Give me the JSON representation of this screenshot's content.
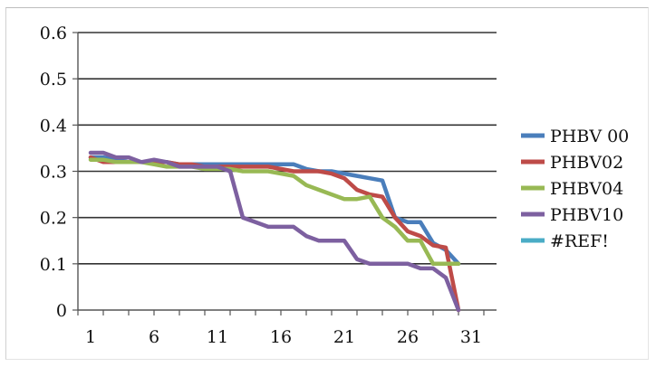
{
  "chart_data": {
    "type": "line",
    "title": "",
    "xlabel": "",
    "ylabel": "",
    "ylim": [
      0,
      0.6
    ],
    "xlim": [
      0,
      33
    ],
    "grid": "horizontal",
    "legend_position": "right",
    "y_ticks": [
      "0",
      "0.1",
      "0.2",
      "0.3",
      "0.4",
      "0.5",
      "0.6"
    ],
    "x_ticks": [
      "1",
      "6",
      "11",
      "16",
      "21",
      "26",
      "31"
    ],
    "x_tick_values": [
      1,
      6,
      11,
      16,
      21,
      26,
      31
    ],
    "series": [
      {
        "name": "PHBV 00",
        "color": "#4a7ebb",
        "x": [
          1,
          2,
          3,
          4,
          5,
          6,
          7,
          8,
          9,
          10,
          11,
          12,
          13,
          14,
          15,
          16,
          17,
          18,
          19,
          20,
          21,
          22,
          23,
          24,
          25,
          26,
          27,
          28,
          29,
          30
        ],
        "y": [
          0.33,
          0.33,
          0.325,
          0.32,
          0.32,
          0.32,
          0.32,
          0.315,
          0.315,
          0.315,
          0.315,
          0.315,
          0.315,
          0.315,
          0.315,
          0.315,
          0.315,
          0.305,
          0.3,
          0.3,
          0.295,
          0.29,
          0.285,
          0.28,
          0.2,
          0.19,
          0.19,
          0.145,
          0.13,
          0.1
        ]
      },
      {
        "name": "PHBV02",
        "color": "#be4b48",
        "x": [
          1,
          2,
          3,
          4,
          5,
          6,
          7,
          8,
          9,
          10,
          11,
          12,
          13,
          14,
          15,
          16,
          17,
          18,
          19,
          20,
          21,
          22,
          23,
          24,
          25,
          26,
          27,
          28,
          29,
          30
        ],
        "y": [
          0.33,
          0.32,
          0.32,
          0.32,
          0.32,
          0.32,
          0.32,
          0.315,
          0.315,
          0.31,
          0.31,
          0.31,
          0.31,
          0.31,
          0.31,
          0.305,
          0.3,
          0.3,
          0.3,
          0.295,
          0.285,
          0.26,
          0.25,
          0.245,
          0.2,
          0.17,
          0.16,
          0.14,
          0.135,
          0.0
        ]
      },
      {
        "name": "PHBV04",
        "color": "#98b954",
        "x": [
          1,
          2,
          3,
          4,
          5,
          6,
          7,
          8,
          9,
          10,
          11,
          12,
          13,
          14,
          15,
          16,
          17,
          18,
          19,
          20,
          21,
          22,
          23,
          24,
          25,
          26,
          27,
          28,
          29,
          30
        ],
        "y": [
          0.325,
          0.325,
          0.32,
          0.32,
          0.32,
          0.315,
          0.31,
          0.31,
          0.31,
          0.305,
          0.305,
          0.305,
          0.3,
          0.3,
          0.3,
          0.295,
          0.29,
          0.27,
          0.26,
          0.25,
          0.24,
          0.24,
          0.245,
          0.2,
          0.18,
          0.15,
          0.15,
          0.1,
          0.1,
          0.1
        ]
      },
      {
        "name": "PHBV10",
        "color": "#7d60a0",
        "x": [
          1,
          2,
          3,
          4,
          5,
          6,
          7,
          8,
          9,
          10,
          11,
          12,
          13,
          14,
          15,
          16,
          17,
          18,
          19,
          20,
          21,
          22,
          23,
          24,
          25,
          26,
          27,
          28,
          29,
          30
        ],
        "y": [
          0.34,
          0.34,
          0.33,
          0.33,
          0.32,
          0.325,
          0.32,
          0.31,
          0.31,
          0.31,
          0.31,
          0.3,
          0.2,
          0.19,
          0.18,
          0.18,
          0.18,
          0.16,
          0.15,
          0.15,
          0.15,
          0.11,
          0.1,
          0.1,
          0.1,
          0.1,
          0.09,
          0.09,
          0.07,
          0.0
        ]
      },
      {
        "name": "#REF!",
        "color": "#4aacc6",
        "x": [],
        "y": []
      }
    ]
  }
}
